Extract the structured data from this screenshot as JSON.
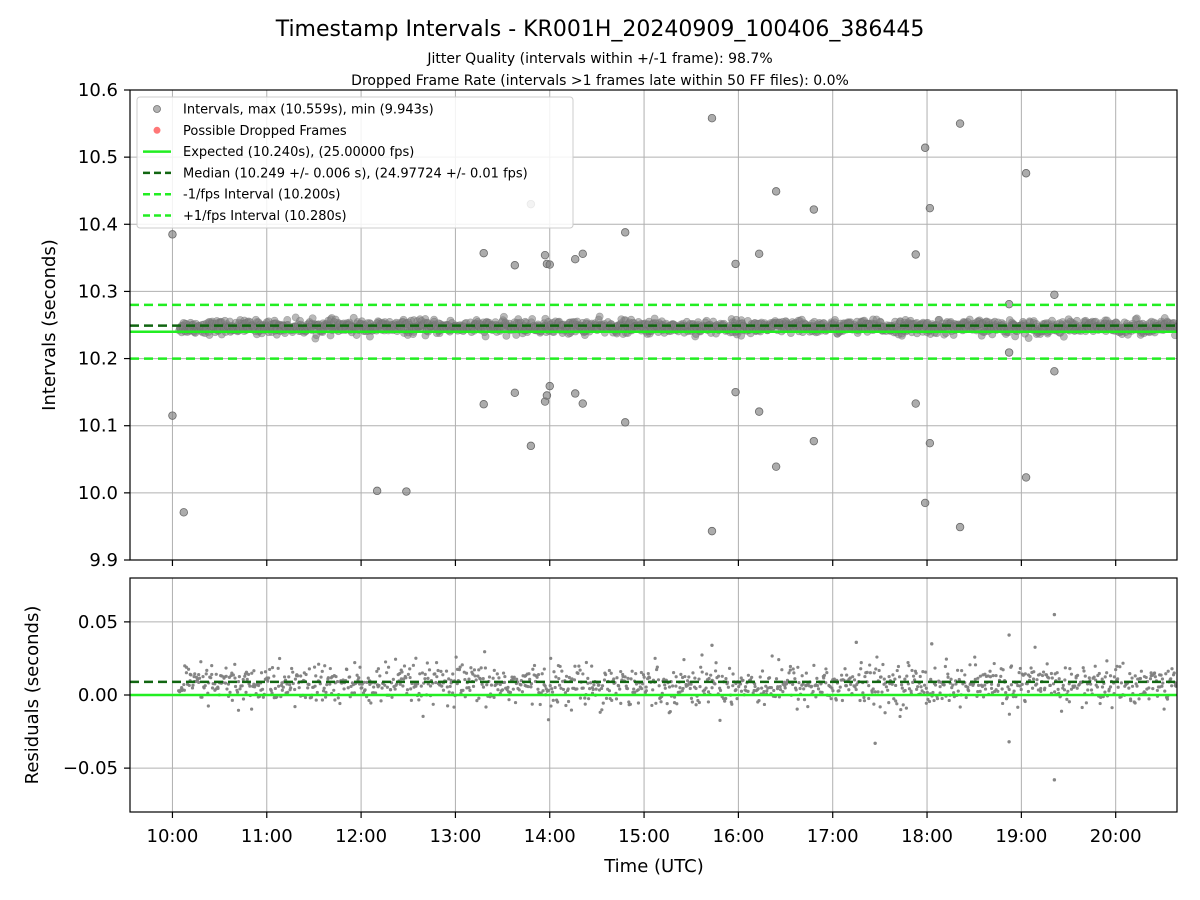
{
  "title": "Timestamp Intervals - KR001H_20240909_100406_386445",
  "subtitles": [
    "Jitter Quality (intervals within +/-1 frame): 98.7%",
    "Dropped Frame Rate (intervals >1 frames late within 50 FF files): 0.0%"
  ],
  "colors": {
    "points": "#808080",
    "dropped": "#ff5555",
    "expected": "#22ee22",
    "median": "#116611",
    "fps_interval": "#22ee22",
    "grid": "#b0b0b0"
  },
  "chart_data": [
    {
      "type": "scatter",
      "ylabel": "Intervals (seconds)",
      "xlim": [
        9.55,
        20.65
      ],
      "ylim": [
        9.9,
        10.6
      ],
      "yticks": [
        9.9,
        10.0,
        10.1,
        10.2,
        10.3,
        10.4,
        10.5,
        10.6
      ],
      "ytick_labels": [
        "9.9",
        "10.0",
        "10.1",
        "10.2",
        "10.3",
        "10.4",
        "10.5",
        "10.6"
      ],
      "grid": true,
      "legend_position": "upper-left",
      "legend": [
        "Intervals, max (10.559s), min (9.943s)",
        "Possible Dropped Frames",
        "Expected (10.240s), (25.00000 fps)",
        "Median (10.249 +/- 0.006 s), (24.97724 +/- 0.01 fps)",
        "-1/fps Interval (10.200s)",
        "+1/fps Interval (10.280s)"
      ],
      "expected": 10.24,
      "median": 10.249,
      "minus_interval": 10.2,
      "plus_interval": 10.28,
      "dense_band": {
        "x_start": 10.07,
        "x_end": 20.65,
        "center": 10.247,
        "spread": 0.009
      },
      "outliers": [
        [
          10.0,
          10.385
        ],
        [
          10.0,
          10.115
        ],
        [
          10.12,
          9.971
        ],
        [
          12.17,
          10.003
        ],
        [
          12.48,
          10.002
        ],
        [
          13.3,
          10.357
        ],
        [
          13.3,
          10.132
        ],
        [
          13.63,
          10.339
        ],
        [
          13.63,
          10.149
        ],
        [
          13.8,
          10.43
        ],
        [
          13.8,
          10.07
        ],
        [
          13.95,
          10.354
        ],
        [
          13.97,
          10.341
        ],
        [
          14.0,
          10.34
        ],
        [
          13.95,
          10.136
        ],
        [
          13.97,
          10.145
        ],
        [
          14.0,
          10.159
        ],
        [
          14.27,
          10.348
        ],
        [
          14.35,
          10.356
        ],
        [
          14.27,
          10.148
        ],
        [
          14.35,
          10.133
        ],
        [
          14.8,
          10.388
        ],
        [
          14.8,
          10.105
        ],
        [
          15.72,
          10.558
        ],
        [
          15.72,
          9.943
        ],
        [
          15.97,
          10.341
        ],
        [
          15.97,
          10.15
        ],
        [
          16.22,
          10.356
        ],
        [
          16.22,
          10.121
        ],
        [
          16.4,
          10.449
        ],
        [
          16.4,
          10.039
        ],
        [
          16.8,
          10.422
        ],
        [
          16.8,
          10.077
        ],
        [
          17.88,
          10.355
        ],
        [
          17.88,
          10.133
        ],
        [
          17.98,
          10.514
        ],
        [
          17.98,
          9.985
        ],
        [
          18.03,
          10.424
        ],
        [
          18.03,
          10.074
        ],
        [
          18.35,
          10.55
        ],
        [
          18.35,
          9.949
        ],
        [
          19.05,
          10.476
        ],
        [
          19.05,
          10.023
        ],
        [
          19.35,
          10.295
        ],
        [
          19.35,
          10.181
        ],
        [
          18.87,
          10.281
        ],
        [
          18.87,
          10.209
        ]
      ]
    },
    {
      "type": "scatter",
      "ylabel": "Residuals (seconds)",
      "xlabel": "Time (UTC)",
      "xlim": [
        9.55,
        20.65
      ],
      "ylim": [
        -0.08,
        0.08
      ],
      "yticks": [
        -0.05,
        0.0,
        0.05
      ],
      "ytick_labels": [
        "−0.05",
        "0.00",
        "0.05"
      ],
      "xticks": [
        10,
        11,
        12,
        13,
        14,
        15,
        16,
        17,
        18,
        19,
        20
      ],
      "xtick_labels": [
        "10:00",
        "11:00",
        "12:00",
        "13:00",
        "14:00",
        "15:00",
        "16:00",
        "17:00",
        "18:00",
        "19:00",
        "20:00"
      ],
      "grid": true,
      "expected": 0.0,
      "median": 0.009,
      "band": {
        "x_start": 10.07,
        "x_end": 20.65,
        "center": 0.007,
        "spread": 0.008
      },
      "outliers": [
        [
          19.35,
          0.055
        ],
        [
          19.35,
          -0.058
        ],
        [
          18.87,
          0.041
        ],
        [
          18.87,
          -0.032
        ],
        [
          17.45,
          -0.033
        ],
        [
          17.25,
          0.036
        ],
        [
          15.72,
          0.034
        ],
        [
          18.05,
          0.035
        ]
      ]
    }
  ]
}
